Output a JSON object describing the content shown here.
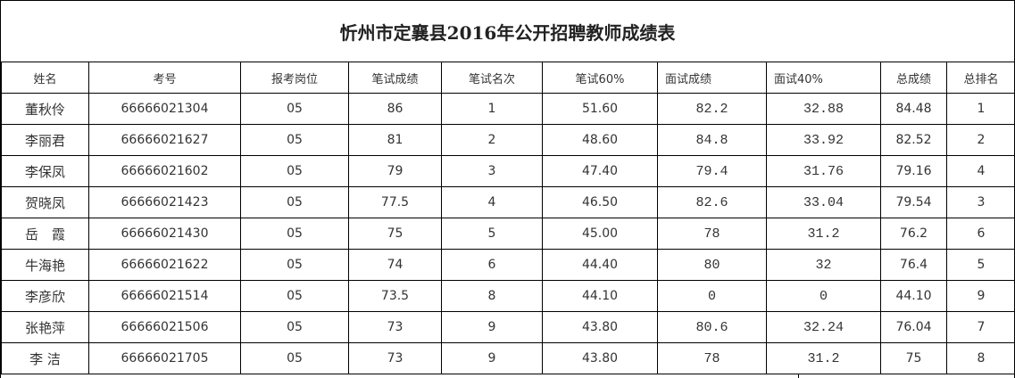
{
  "title": "忻州市定襄县2016年公开招聘教师成绩表",
  "columns": [
    "姓名",
    "考号",
    "报考岗位",
    "笔试成绩",
    "笔试名次",
    "笔试60%",
    "面试成绩",
    "面试40%",
    "总成绩",
    "总排名"
  ],
  "rows": [
    [
      "董秋伶",
      "66666021304",
      "05",
      "86",
      "1",
      "51.60",
      "82.2",
      "32.88",
      "84.48",
      "1"
    ],
    [
      "李丽君",
      "66666021627",
      "05",
      "81",
      "2",
      "48.60",
      "84.8",
      "33.92",
      "82.52",
      "2"
    ],
    [
      "李保凤",
      "66666021602",
      "05",
      "79",
      "3",
      "47.40",
      "79.4",
      "31.76",
      "79.16",
      "4"
    ],
    [
      "贺晓凤",
      "66666021423",
      "05",
      "77.5",
      "4",
      "46.50",
      "82.6",
      "33.04",
      "79.54",
      "3"
    ],
    [
      "岳　霞",
      "66666021430",
      "05",
      "75",
      "5",
      "45.00",
      "78",
      "31.2",
      "76.2",
      "6"
    ],
    [
      "牛海艳",
      "66666021622",
      "05",
      "74",
      "6",
      "44.40",
      "80",
      "32",
      "76.4",
      "5"
    ],
    [
      "李彦欣",
      "66666021514",
      "05",
      "73.5",
      "8",
      "44.10",
      "0",
      "0",
      "44.10",
      "9"
    ],
    [
      "张艳萍",
      "66666021506",
      "05",
      "73",
      "9",
      "43.80",
      "80.6",
      "32.24",
      "76.04",
      "7"
    ],
    [
      "李 洁",
      "66666021705",
      "05",
      "73",
      "9",
      "43.80",
      "78",
      "31.2",
      "75",
      "8"
    ]
  ]
}
